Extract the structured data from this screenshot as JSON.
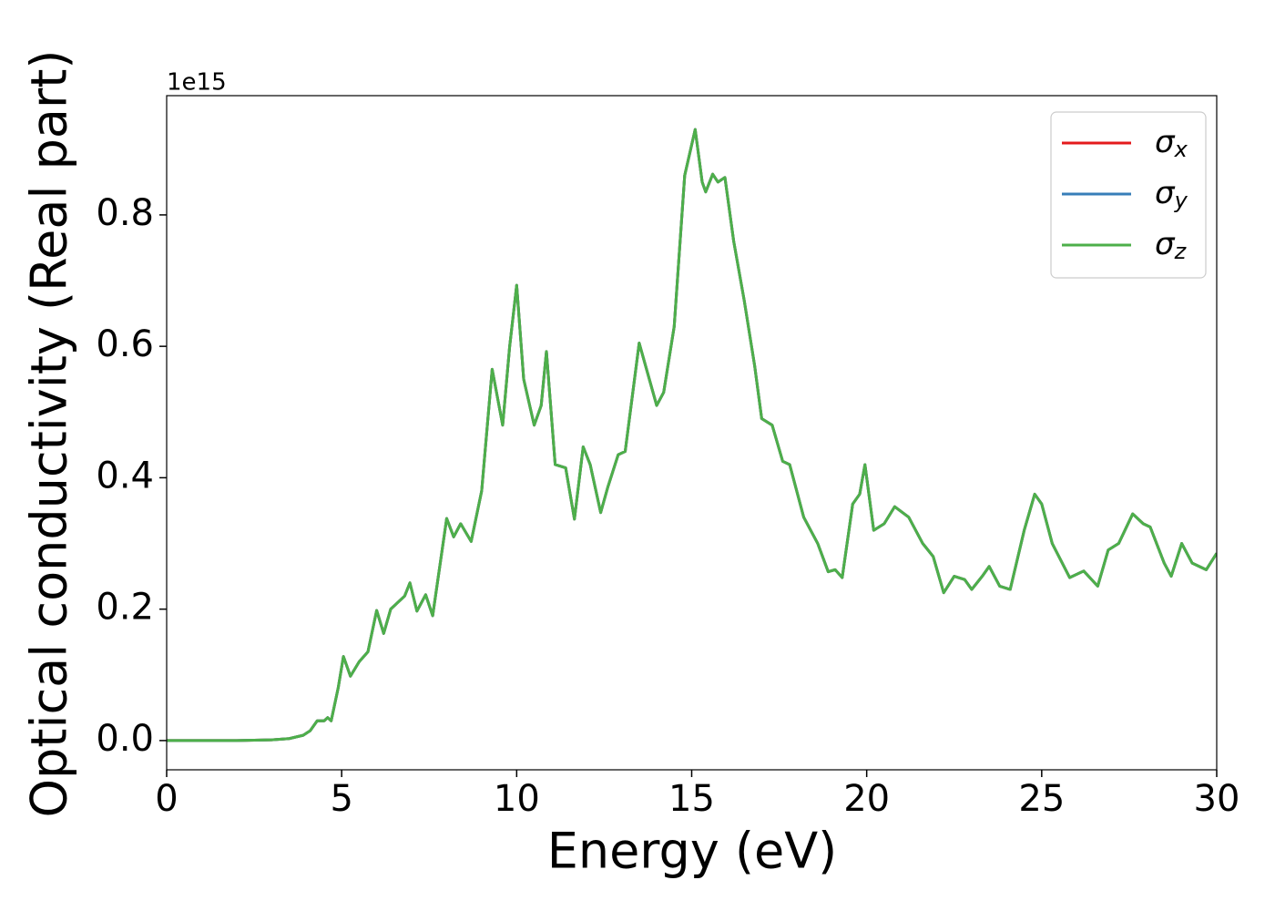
{
  "chart_data": {
    "type": "line",
    "xlabel": "Energy (eV)",
    "ylabel": "Optical conductivity (Real part)",
    "y_offset_label": "1e15",
    "x": [
      0,
      1,
      2,
      3,
      3.5,
      3.9,
      4.1,
      4.3,
      4.5,
      4.6,
      4.7,
      4.9,
      5.05,
      5.25,
      5.5,
      5.75,
      6.0,
      6.2,
      6.4,
      6.6,
      6.8,
      6.95,
      7.15,
      7.4,
      7.6,
      8.0,
      8.2,
      8.4,
      8.7,
      9.0,
      9.3,
      9.6,
      9.8,
      10.0,
      10.2,
      10.5,
      10.7,
      10.85,
      11.1,
      11.4,
      11.65,
      11.9,
      12.1,
      12.4,
      12.6,
      12.9,
      13.1,
      13.5,
      14.0,
      14.2,
      14.5,
      14.8,
      15.1,
      15.3,
      15.4,
      15.6,
      15.75,
      15.95,
      16.2,
      16.5,
      16.8,
      17.0,
      17.3,
      17.6,
      17.8,
      18.2,
      18.6,
      18.9,
      19.1,
      19.3,
      19.6,
      19.8,
      19.95,
      20.2,
      20.5,
      20.8,
      21.2,
      21.6,
      21.9,
      22.2,
      22.5,
      22.8,
      23.0,
      23.3,
      23.5,
      23.8,
      24.1,
      24.5,
      24.8,
      25.0,
      25.3,
      25.8,
      26.2,
      26.6,
      26.9,
      27.2,
      27.6,
      27.9,
      28.1,
      28.5,
      28.7,
      29.0,
      29.3,
      29.7,
      30.0
    ],
    "series": [
      {
        "name": "σx",
        "color": "#e41a1c",
        "values": [
          0,
          0,
          0,
          0.001,
          0.003,
          0.008,
          0.015,
          0.03,
          0.03,
          0.035,
          0.03,
          0.08,
          0.128,
          0.098,
          0.12,
          0.135,
          0.198,
          0.163,
          0.2,
          0.21,
          0.22,
          0.24,
          0.197,
          0.222,
          0.19,
          0.338,
          0.31,
          0.33,
          0.303,
          0.38,
          0.565,
          0.48,
          0.6,
          0.693,
          0.55,
          0.48,
          0.51,
          0.592,
          0.42,
          0.415,
          0.337,
          0.447,
          0.42,
          0.347,
          0.385,
          0.435,
          0.44,
          0.605,
          0.51,
          0.53,
          0.63,
          0.86,
          0.93,
          0.85,
          0.835,
          0.862,
          0.85,
          0.857,
          0.76,
          0.67,
          0.57,
          0.49,
          0.48,
          0.425,
          0.42,
          0.34,
          0.3,
          0.257,
          0.26,
          0.248,
          0.36,
          0.375,
          0.42,
          0.32,
          0.33,
          0.356,
          0.34,
          0.3,
          0.28,
          0.225,
          0.25,
          0.245,
          0.23,
          0.25,
          0.265,
          0.235,
          0.23,
          0.32,
          0.375,
          0.36,
          0.3,
          0.248,
          0.258,
          0.235,
          0.29,
          0.3,
          0.345,
          0.33,
          0.325,
          0.27,
          0.25,
          0.3,
          0.27,
          0.26,
          0.285
        ]
      },
      {
        "name": "σy",
        "color": "#377eb8",
        "values": [
          0,
          0,
          0,
          0.001,
          0.003,
          0.008,
          0.015,
          0.03,
          0.03,
          0.035,
          0.03,
          0.08,
          0.128,
          0.098,
          0.12,
          0.135,
          0.198,
          0.163,
          0.2,
          0.21,
          0.22,
          0.24,
          0.197,
          0.222,
          0.19,
          0.338,
          0.31,
          0.33,
          0.303,
          0.38,
          0.565,
          0.48,
          0.6,
          0.693,
          0.55,
          0.48,
          0.51,
          0.592,
          0.42,
          0.415,
          0.337,
          0.447,
          0.42,
          0.347,
          0.385,
          0.435,
          0.44,
          0.605,
          0.51,
          0.53,
          0.63,
          0.86,
          0.93,
          0.85,
          0.835,
          0.862,
          0.85,
          0.857,
          0.76,
          0.67,
          0.57,
          0.49,
          0.48,
          0.425,
          0.42,
          0.34,
          0.3,
          0.257,
          0.26,
          0.248,
          0.36,
          0.375,
          0.42,
          0.32,
          0.33,
          0.356,
          0.34,
          0.3,
          0.28,
          0.225,
          0.25,
          0.245,
          0.23,
          0.25,
          0.265,
          0.235,
          0.23,
          0.32,
          0.375,
          0.36,
          0.3,
          0.248,
          0.258,
          0.235,
          0.29,
          0.3,
          0.345,
          0.33,
          0.325,
          0.27,
          0.25,
          0.3,
          0.27,
          0.26,
          0.285
        ]
      },
      {
        "name": "σz",
        "color": "#4daf4a",
        "values": [
          0,
          0,
          0,
          0.001,
          0.003,
          0.008,
          0.015,
          0.03,
          0.03,
          0.035,
          0.03,
          0.08,
          0.128,
          0.098,
          0.12,
          0.135,
          0.198,
          0.163,
          0.2,
          0.21,
          0.22,
          0.24,
          0.197,
          0.222,
          0.19,
          0.338,
          0.31,
          0.33,
          0.303,
          0.38,
          0.565,
          0.48,
          0.6,
          0.693,
          0.55,
          0.48,
          0.51,
          0.592,
          0.42,
          0.415,
          0.337,
          0.447,
          0.42,
          0.347,
          0.385,
          0.435,
          0.44,
          0.605,
          0.51,
          0.53,
          0.63,
          0.86,
          0.93,
          0.85,
          0.835,
          0.862,
          0.85,
          0.857,
          0.76,
          0.67,
          0.57,
          0.49,
          0.48,
          0.425,
          0.42,
          0.34,
          0.3,
          0.257,
          0.26,
          0.248,
          0.36,
          0.375,
          0.42,
          0.32,
          0.33,
          0.356,
          0.34,
          0.3,
          0.28,
          0.225,
          0.25,
          0.245,
          0.23,
          0.25,
          0.265,
          0.235,
          0.23,
          0.32,
          0.375,
          0.36,
          0.3,
          0.248,
          0.258,
          0.235,
          0.29,
          0.3,
          0.345,
          0.33,
          0.325,
          0.27,
          0.25,
          0.3,
          0.27,
          0.26,
          0.285
        ]
      }
    ],
    "xlim": [
      0,
      30
    ],
    "xticks": [
      0,
      5,
      10,
      15,
      20,
      25,
      30
    ],
    "ylim": [
      -0.0445,
      0.9815
    ],
    "yticks": [
      {
        "value": 0,
        "label": "0.0"
      },
      0.2,
      0.4,
      0.6,
      0.8
    ],
    "grid": false,
    "legend": "upper right"
  }
}
